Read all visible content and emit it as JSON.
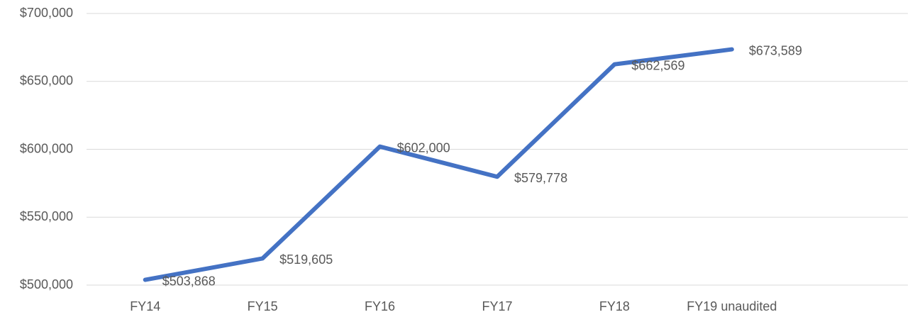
{
  "chart_data": {
    "type": "line",
    "categories": [
      "FY14",
      "FY15",
      "FY16",
      "FY17",
      "FY18",
      "FY19 unaudited",
      null
    ],
    "series": [
      {
        "name": null,
        "color": "#4472c4",
        "values": [
          503868,
          519605,
          602000,
          579778,
          662569,
          673589,
          null
        ],
        "value_labels": [
          "$503,868",
          "$519,605",
          "$602,000",
          "$579,778",
          "$662,569",
          "$673,589",
          null
        ]
      }
    ],
    "ylim": [
      500000,
      700000
    ],
    "yticks": [
      {
        "value": 500000,
        "label": "$500,000"
      },
      {
        "value": 550000,
        "label": "$550,000"
      },
      {
        "value": 600000,
        "label": "$600,000"
      },
      {
        "value": 650000,
        "label": "$650,000"
      },
      {
        "value": 700000,
        "label": "$700,000"
      }
    ],
    "grid": true
  }
}
